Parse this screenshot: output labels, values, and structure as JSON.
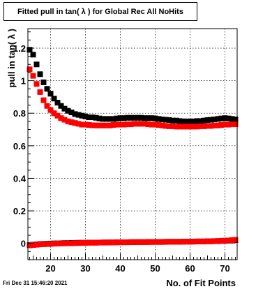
{
  "chart_data": {
    "type": "scatter",
    "title": "Fitted pull in tan( λ ) for Global Rec All NoHits",
    "xlabel": "No. of Fit Points",
    "ylabel": "pull in tan( λ )",
    "xlim": [
      13.5,
      73.5
    ],
    "ylim": [
      -0.1,
      1.32
    ],
    "xticks": [
      20,
      30,
      40,
      50,
      60,
      70
    ],
    "yticks": [
      0,
      0.2,
      0.4,
      0.6,
      0.8,
      1,
      1.2
    ],
    "ytick_labels": [
      "0",
      "0.2",
      "0.4",
      "0.6",
      "0.8",
      "1",
      "1.2"
    ],
    "grid": true,
    "x": [
      14,
      15,
      16,
      17,
      18,
      19,
      20,
      21,
      22,
      23,
      24,
      25,
      26,
      27,
      28,
      29,
      30,
      31,
      32,
      33,
      34,
      35,
      36,
      37,
      38,
      39,
      40,
      41,
      42,
      43,
      44,
      45,
      46,
      47,
      48,
      49,
      50,
      51,
      52,
      53,
      54,
      55,
      56,
      57,
      58,
      59,
      60,
      61,
      62,
      63,
      64,
      65,
      66,
      67,
      68,
      69,
      70,
      71,
      72,
      73
    ],
    "series": [
      {
        "color": "#000000",
        "values": [
          1.19,
          1.16,
          1.1,
          1.04,
          0.99,
          0.95,
          0.92,
          0.89,
          0.865,
          0.845,
          0.828,
          0.815,
          0.805,
          0.795,
          0.79,
          0.785,
          0.78,
          0.775,
          0.775,
          0.772,
          0.768,
          0.765,
          0.765,
          0.765,
          0.765,
          0.768,
          0.77,
          0.77,
          0.772,
          0.772,
          0.772,
          0.772,
          0.772,
          0.77,
          0.77,
          0.77,
          0.768,
          0.765,
          0.762,
          0.76,
          0.758,
          0.755,
          0.755,
          0.752,
          0.75,
          0.75,
          0.75,
          0.75,
          0.752,
          0.752,
          0.755,
          0.758,
          0.76,
          0.762,
          0.765,
          0.768,
          0.77,
          0.768,
          0.765,
          0.762
        ]
      },
      {
        "color": "#ff0000",
        "values": [
          1.07,
          1.03,
          0.98,
          0.93,
          0.88,
          0.845,
          0.82,
          0.8,
          0.785,
          0.77,
          0.76,
          0.75,
          0.745,
          0.74,
          0.735,
          0.73,
          0.73,
          0.728,
          0.726,
          0.725,
          0.725,
          0.725,
          0.725,
          0.725,
          0.728,
          0.73,
          0.73,
          0.73,
          0.732,
          0.732,
          0.735,
          0.735,
          0.735,
          0.735,
          0.732,
          0.73,
          0.73,
          0.728,
          0.725,
          0.722,
          0.72,
          0.72,
          0.718,
          0.718,
          0.718,
          0.718,
          0.718,
          0.718,
          0.718,
          0.72,
          0.72,
          0.722,
          0.722,
          0.725,
          0.725,
          0.728,
          0.73,
          0.73,
          0.732,
          0.732
        ]
      },
      {
        "color": "#000000",
        "values": [
          -0.01,
          -0.008,
          -0.006,
          -0.004,
          -0.003,
          -0.002,
          -0.001,
          0,
          0,
          0.001,
          0.002,
          0.002,
          0.003,
          0.003,
          0.004,
          0.004,
          0.004,
          0.005,
          0.005,
          0.005,
          0.005,
          0.006,
          0.006,
          0.006,
          0.006,
          0.007,
          0.007,
          0.007,
          0.007,
          0.008,
          0.008,
          0.008,
          0.008,
          0.008,
          0.009,
          0.009,
          0.009,
          0.009,
          0.009,
          0.01,
          0.01,
          0.01,
          0.01,
          0.01,
          0.011,
          0.011,
          0.011,
          0.011,
          0.012,
          0.012,
          0.012,
          0.013,
          0.013,
          0.014,
          0.014,
          0.015,
          0.016,
          0.017,
          0.018,
          0.02
        ]
      },
      {
        "color": "#ff0000",
        "values": [
          -0.012,
          -0.01,
          -0.008,
          -0.006,
          -0.005,
          -0.004,
          -0.003,
          -0.002,
          -0.001,
          0,
          0,
          0.001,
          0.001,
          0.002,
          0.002,
          0.003,
          0.003,
          0.004,
          0.004,
          0.004,
          0.005,
          0.005,
          0.005,
          0.006,
          0.006,
          0.006,
          0.007,
          0.007,
          0.007,
          0.007,
          0.008,
          0.008,
          0.008,
          0.008,
          0.008,
          0.009,
          0.009,
          0.009,
          0.009,
          0.009,
          0.01,
          0.01,
          0.01,
          0.01,
          0.01,
          0.011,
          0.011,
          0.011,
          0.012,
          0.012,
          0.012,
          0.013,
          0.013,
          0.014,
          0.015,
          0.016,
          0.017,
          0.018,
          0.02,
          0.022
        ]
      }
    ]
  },
  "footer": {
    "timestamp": "Fri Dec 31 15:46:20 2021"
  }
}
